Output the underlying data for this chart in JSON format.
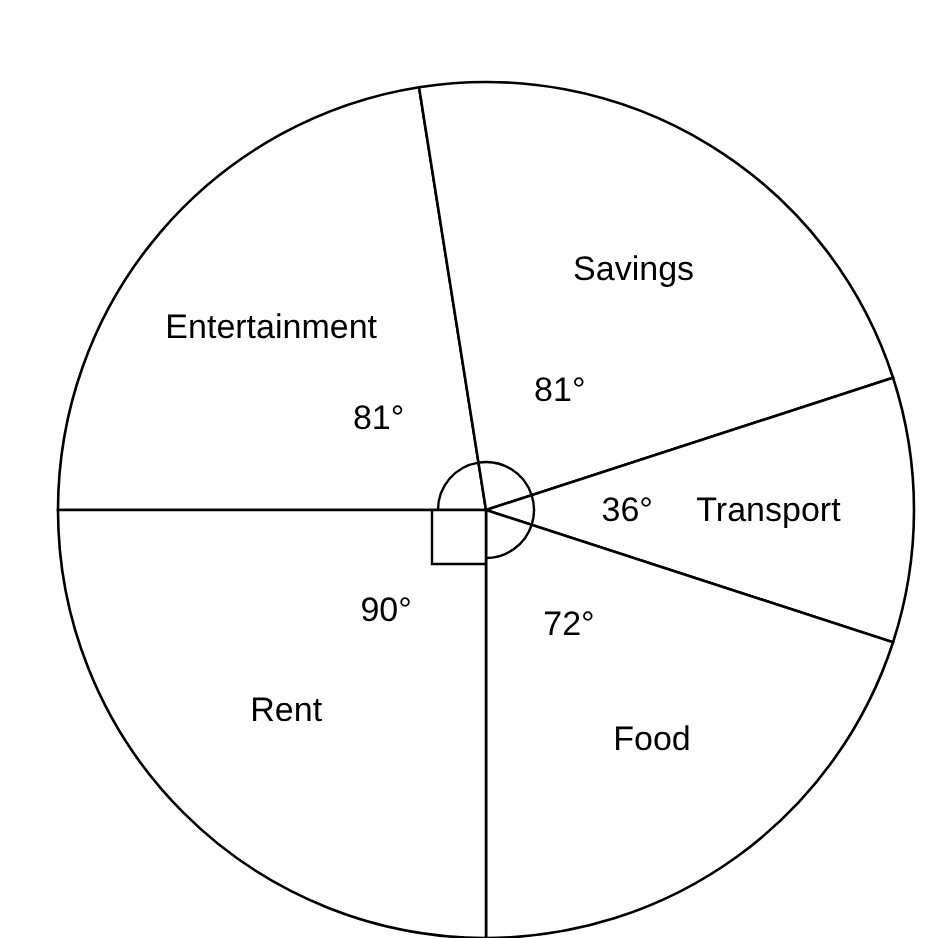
{
  "chart_data": {
    "type": "pie",
    "categories": [
      "Entertainment",
      "Savings",
      "Transport",
      "Food",
      "Rent"
    ],
    "values": [
      81,
      81,
      36,
      72,
      90
    ],
    "value_labels": [
      "81°",
      "81°",
      "36°",
      "72°",
      "90°"
    ],
    "colors": [
      "#ffffff",
      "#ffffff",
      "#ffffff",
      "#ffffff",
      "#ffffff"
    ]
  }
}
